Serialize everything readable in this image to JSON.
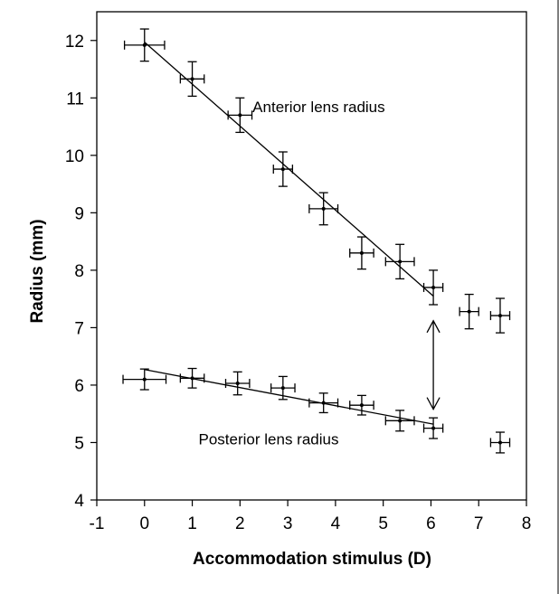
{
  "chart_data": {
    "type": "scatter",
    "title": "",
    "xlabel": "Accommodation stimulus (D)",
    "ylabel": "Radius (mm)",
    "xlim": [
      -1,
      8
    ],
    "ylim": [
      4,
      12.5
    ],
    "xticks": [
      "-1",
      "0",
      "1",
      "2",
      "3",
      "4",
      "5",
      "6",
      "7",
      "8"
    ],
    "yticks": [
      "4",
      "5",
      "6",
      "7",
      "8",
      "9",
      "10",
      "11",
      "12"
    ],
    "grid": false,
    "legend": "none",
    "series": [
      {
        "label": "Anterior lens radius",
        "x": [
          0,
          1,
          2,
          2.9,
          3.75,
          4.55,
          5.35,
          6.05,
          6.8,
          7.45
        ],
        "y": [
          11.92,
          11.33,
          10.7,
          9.76,
          9.07,
          8.3,
          8.15,
          7.7,
          7.28,
          7.21
        ],
        "x_err": [
          0.42,
          0.25,
          0.25,
          0.2,
          0.3,
          0.25,
          0.3,
          0.2,
          0.2,
          0.2
        ],
        "y_err": [
          0.28,
          0.3,
          0.3,
          0.3,
          0.28,
          0.28,
          0.3,
          0.3,
          0.3,
          0.3
        ],
        "fit": {
          "x": [
            0,
            6.05
          ],
          "y": [
            11.97,
            7.55
          ]
        }
      },
      {
        "label": "Posterior lens radius",
        "x": [
          0,
          1,
          1.95,
          2.9,
          3.75,
          4.55,
          5.35,
          6.05,
          7.45
        ],
        "y": [
          6.1,
          6.12,
          6.03,
          5.95,
          5.69,
          5.65,
          5.38,
          5.25,
          5.0
        ],
        "x_err": [
          0.45,
          0.25,
          0.25,
          0.25,
          0.3,
          0.25,
          0.3,
          0.2,
          0.2
        ],
        "y_err": [
          0.18,
          0.17,
          0.2,
          0.2,
          0.17,
          0.17,
          0.18,
          0.18,
          0.18
        ],
        "fit": {
          "x": [
            0,
            6.05
          ],
          "y": [
            6.27,
            5.32
          ]
        }
      }
    ],
    "annotations": [
      {
        "text": "Anterior lens radius",
        "x": 3.65,
        "y": 10.75
      },
      {
        "text": "Posterior lens radius",
        "x": 2.6,
        "y": 4.97
      }
    ],
    "arrow": {
      "x": 6.05,
      "y_from": 7.12,
      "y_to": 5.58,
      "style": "double-headed"
    }
  }
}
